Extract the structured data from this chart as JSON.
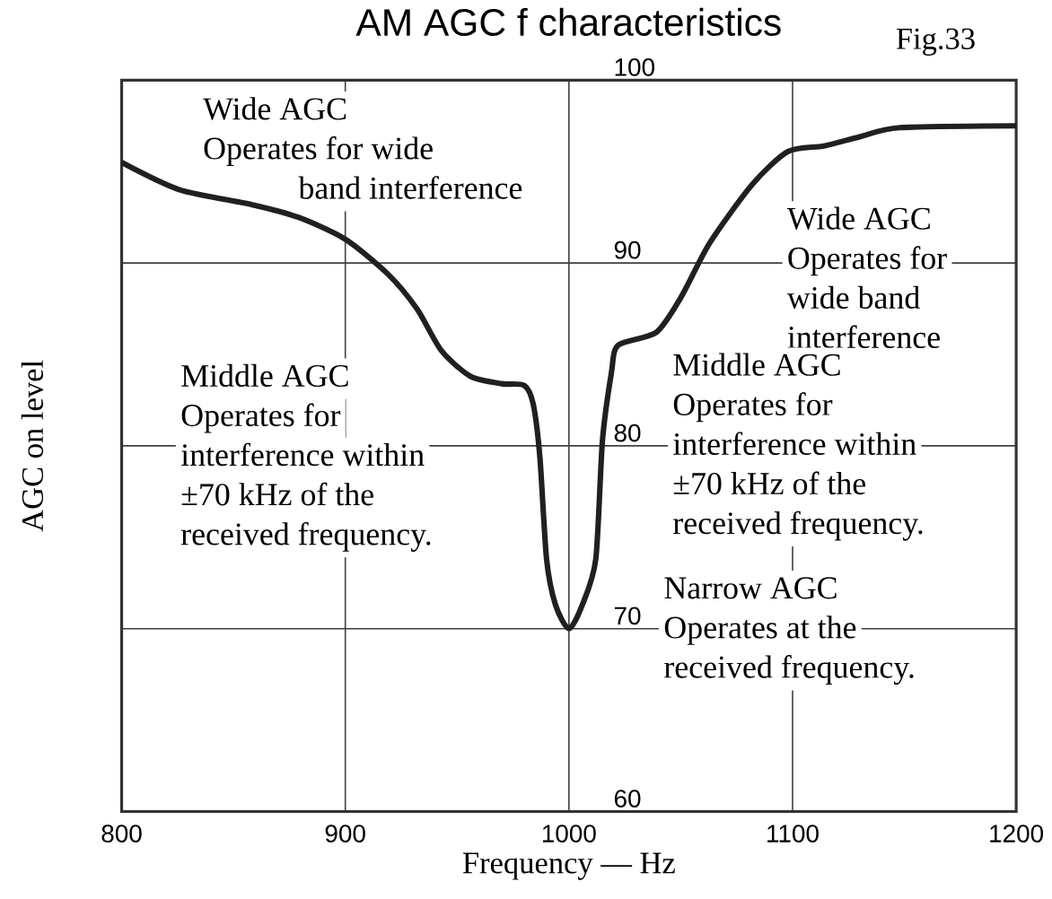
{
  "chart_data": {
    "type": "line",
    "title": "AM AGC f characteristics",
    "xlabel": "Frequency — Hz",
    "ylabel": "AGC on level",
    "x": [
      800,
      826,
      858,
      879,
      900,
      919,
      932,
      943,
      956,
      970,
      980,
      984,
      987,
      990,
      994,
      1000,
      1006,
      1012,
      1015,
      1019,
      1022,
      1039,
      1050,
      1063,
      1082,
      1098,
      1114,
      1130,
      1148,
      1200
    ],
    "series": [
      {
        "color": "#231f20",
        "values": [
          95.5,
          94.0,
          93.2,
          92.5,
          91.3,
          89.4,
          87.5,
          85.2,
          83.8,
          83.4,
          83.3,
          82.3,
          79.4,
          73.8,
          71.3,
          70.0,
          71.3,
          73.8,
          80.3,
          84.0,
          85.5,
          86.2,
          88.1,
          91.1,
          94.3,
          96.1,
          96.4,
          96.9,
          97.4,
          97.5
        ]
      }
    ],
    "xlim": [
      800,
      1200
    ],
    "ylim": [
      60,
      100
    ],
    "xticks": [
      800,
      900,
      1000,
      1100,
      1200
    ],
    "yticks": [
      60,
      70,
      80,
      90,
      100
    ],
    "grid": true,
    "annotations": [
      "Fig.33",
      "Wide AGC",
      "Operates for wide",
      "band interference",
      "Wide AGC",
      "Operates for",
      "wide band",
      "interference",
      "Middle AGC",
      "Operates for",
      "interference within",
      "±70 kHz of the",
      "received frequency.",
      "Middle AGC",
      "Operates for",
      "interference within",
      "±70 kHz of the",
      "received frequency.",
      "Narrow AGC",
      "Operates at the",
      "received frequency."
    ]
  }
}
